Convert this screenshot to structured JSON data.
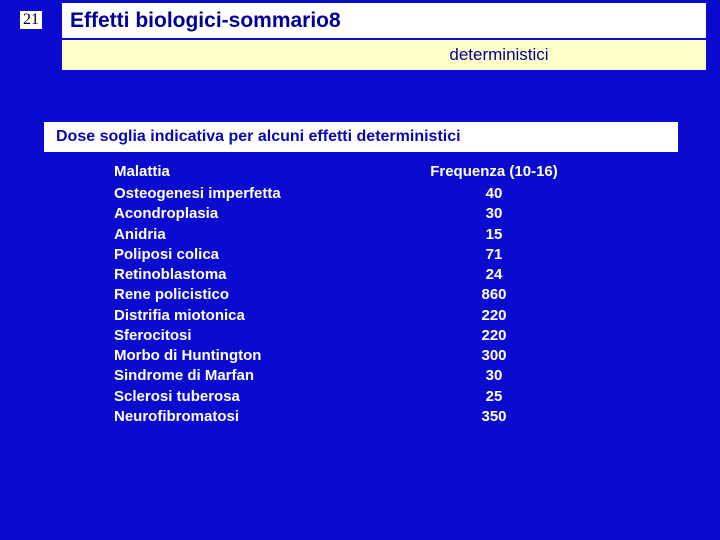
{
  "slide_number": "21",
  "title": "Effetti biologici-sommario8",
  "subtitle": "deterministici",
  "section_header": "Dose soglia indicativa per alcuni effetti deterministici",
  "table": {
    "type": "table",
    "header_disease": "Malattia",
    "header_freq": "Frequenza (10-16)",
    "rows": [
      {
        "disease": "Osteogenesi imperfetta",
        "freq": "40"
      },
      {
        "disease": "Acondroplasia",
        "freq": "30"
      },
      {
        "disease": "Anidria",
        "freq": "15"
      },
      {
        "disease": "Poliposi colica",
        "freq": "71"
      },
      {
        "disease": "Retinoblastoma",
        "freq": "24"
      },
      {
        "disease": "Rene policistico",
        "freq": "860"
      },
      {
        "disease": "Distrifia miotonica",
        "freq": "220"
      },
      {
        "disease": "Sferocitosi",
        "freq": "220"
      },
      {
        "disease": "Morbo di Huntington",
        "freq": "300"
      },
      {
        "disease": "Sindrome di Marfan",
        "freq": "30"
      },
      {
        "disease": "Sclerosi tuberosa",
        "freq": "25"
      },
      {
        "disease": "Neurofibromatosi",
        "freq": "350"
      }
    ]
  },
  "colors": {
    "background": "#0b0bd0",
    "title_text": "#000099",
    "subtitle_text": "#000099",
    "subtitle_bg": "#ffffc8",
    "section_header_text": "#0909b3",
    "table_text": "#ffffff",
    "white": "#ffffff"
  },
  "fonts": {
    "slide_number_size": 16,
    "title_size": 21,
    "title_weight": "bold",
    "subtitle_size": 17,
    "section_header_size": 16,
    "section_header_weight": "bold",
    "table_header_size": 15,
    "table_cell_size": 15
  }
}
